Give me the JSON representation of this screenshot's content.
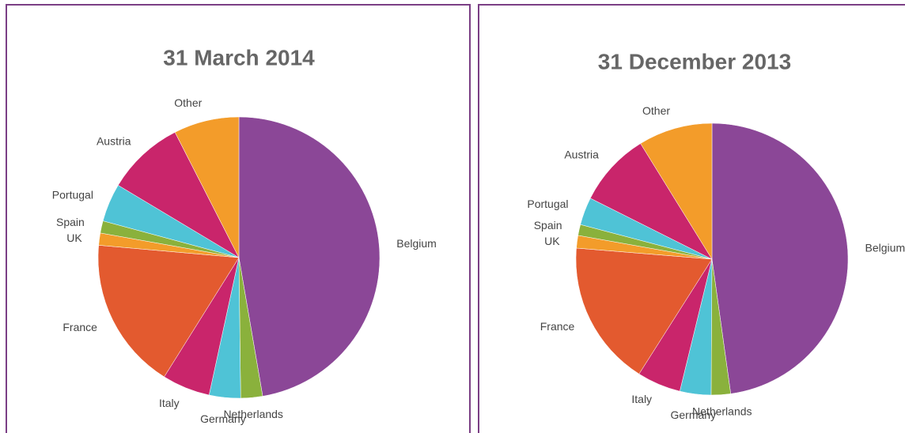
{
  "chart_data": [
    {
      "type": "pie",
      "title": "31 March 2014",
      "categories": [
        "Belgium",
        "Netherlands",
        "Germany",
        "Italy",
        "France",
        "UK",
        "Spain",
        "Portugal",
        "Austria",
        "Other"
      ],
      "values": [
        47.3,
        2.5,
        3.6,
        5.5,
        17.5,
        1.4,
        1.4,
        4.4,
        8.9,
        7.5
      ],
      "colors": [
        "#8b4797",
        "#8ab13c",
        "#4fc3d6",
        "#c9256b",
        "#e35a2f",
        "#f39c2a",
        "#8ab13c",
        "#4fc3d6",
        "#c9256b",
        "#f39c2a"
      ]
    },
    {
      "type": "pie",
      "title": "31 December 2013",
      "categories": [
        "Belgium",
        "Netherlands",
        "Germany",
        "Italy",
        "France",
        "UK",
        "Spain",
        "Portugal",
        "Austria",
        "Other"
      ],
      "values": [
        47.8,
        2.3,
        3.7,
        5.2,
        17.3,
        1.5,
        1.3,
        3.3,
        8.8,
        8.8
      ],
      "colors": [
        "#8b4797",
        "#8ab13c",
        "#4fc3d6",
        "#c9256b",
        "#e35a2f",
        "#f39c2a",
        "#8ab13c",
        "#4fc3d6",
        "#c9256b",
        "#f39c2a"
      ]
    }
  ]
}
